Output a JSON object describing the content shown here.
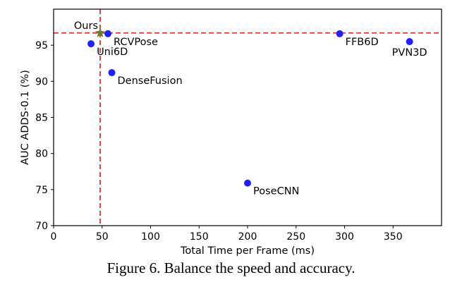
{
  "chart_data": {
    "type": "scatter",
    "title": "",
    "xlabel": "Total Time per Frame (ms)",
    "ylabel": "AUC ADDS-0.1 (%)",
    "xlim": [
      0,
      400
    ],
    "ylim": [
      70,
      100
    ],
    "xticks": [
      0,
      50,
      100,
      150,
      200,
      250,
      300,
      350
    ],
    "yticks": [
      70,
      75,
      80,
      85,
      90,
      95
    ],
    "grid": false,
    "points": [
      {
        "name": "Ours",
        "x": 48,
        "y": 96.7,
        "marker": "star",
        "color": "#6b7d2a",
        "label_pos": "top-left"
      },
      {
        "name": "RCVPose",
        "x": 56,
        "y": 96.6,
        "marker": "circle",
        "color": "#1f1fff",
        "label_pos": "bottom-right"
      },
      {
        "name": "Uni6D",
        "x": 38.6,
        "y": 95.2,
        "marker": "circle",
        "color": "#1f1fff",
        "label_pos": "bottom-right"
      },
      {
        "name": "DenseFusion",
        "x": 60,
        "y": 91.2,
        "marker": "circle",
        "color": "#1f1fff",
        "label_pos": "bottom-right"
      },
      {
        "name": "PoseCNN",
        "x": 200,
        "y": 75.9,
        "marker": "circle",
        "color": "#1f1fff",
        "label_pos": "bottom-right"
      },
      {
        "name": "FFB6D",
        "x": 295,
        "y": 96.6,
        "marker": "circle",
        "color": "#1f1fff",
        "label_pos": "bottom-right"
      },
      {
        "name": "PVN3D",
        "x": 367,
        "y": 95.5,
        "marker": "circle",
        "color": "#1f1fff",
        "label_pos": "bottom-center"
      }
    ],
    "reference_lines": [
      {
        "orientation": "horizontal",
        "value": 96.7,
        "style": "dashed",
        "color": "#e03535"
      },
      {
        "orientation": "vertical",
        "value": 48,
        "style": "dashed",
        "color": "#e03535"
      }
    ]
  },
  "caption": "Figure 6.  Balance the speed and accuracy."
}
